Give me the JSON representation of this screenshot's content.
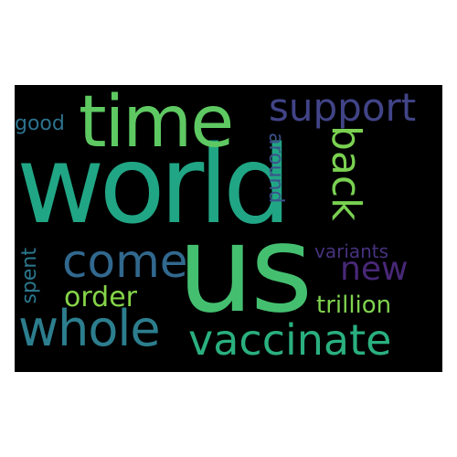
{
  "words": {
    "world": {
      "text": "world",
      "color": "#21a685"
    },
    "us": {
      "text": "us",
      "color": "#44bf70"
    },
    "time": {
      "text": "time",
      "color": "#5ec962"
    },
    "support": {
      "text": "support",
      "color": "#414487"
    },
    "back": {
      "text": "back",
      "color": "#7ad151"
    },
    "around": {
      "text": "around",
      "color": "#3b528b"
    },
    "good": {
      "text": "good",
      "color": "#2c728e"
    },
    "come": {
      "text": "come",
      "color": "#31688e"
    },
    "order": {
      "text": "order",
      "color": "#86d549"
    },
    "spent": {
      "text": "spent",
      "color": "#2a788e"
    },
    "whole": {
      "text": "whole",
      "color": "#2c7e8e"
    },
    "vaccinate": {
      "text": "vaccinate",
      "color": "#2ab07f"
    },
    "new": {
      "text": "new",
      "color": "#482878"
    },
    "variants": {
      "text": "variants",
      "color": "#46327e"
    },
    "trillion": {
      "text": "trillion",
      "color": "#7fd34e"
    }
  },
  "colors": {
    "background": "#000000",
    "page": "#ffffff"
  }
}
